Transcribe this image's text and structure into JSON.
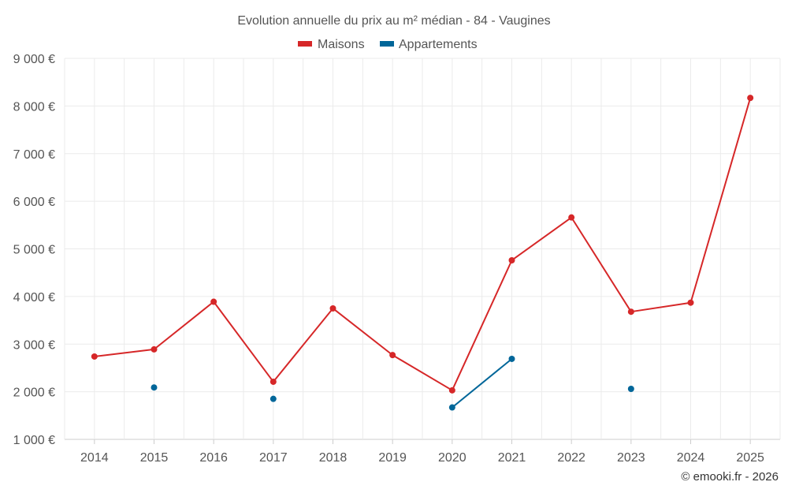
{
  "chart_data": {
    "type": "line",
    "title": "Evolution annuelle du prix au m² médian - 84 - Vaugines",
    "categories": [
      "2014",
      "2015",
      "2016",
      "2017",
      "2018",
      "2019",
      "2020",
      "2021",
      "2022",
      "2023",
      "2024",
      "2025"
    ],
    "ylim": [
      1000,
      9000
    ],
    "y_ticks": [
      1000,
      2000,
      3000,
      4000,
      5000,
      6000,
      7000,
      8000,
      9000
    ],
    "y_tick_labels": [
      "1 000 €",
      "2 000 €",
      "3 000 €",
      "4 000 €",
      "5 000 €",
      "6 000 €",
      "7 000 €",
      "8 000 €",
      "9 000 €"
    ],
    "grid": true,
    "legend_position": "top-center",
    "series": [
      {
        "name": "Maisons",
        "color": "#d62728",
        "values": [
          2740,
          2890,
          3890,
          2210,
          3750,
          2770,
          2030,
          4760,
          5660,
          3680,
          3870,
          8170
        ]
      },
      {
        "name": "Appartements",
        "color": "#006699",
        "values": [
          null,
          2090,
          null,
          1850,
          null,
          null,
          1670,
          2690,
          null,
          2060,
          null,
          null
        ]
      }
    ],
    "credit": "© emooki.fr - 2026"
  }
}
